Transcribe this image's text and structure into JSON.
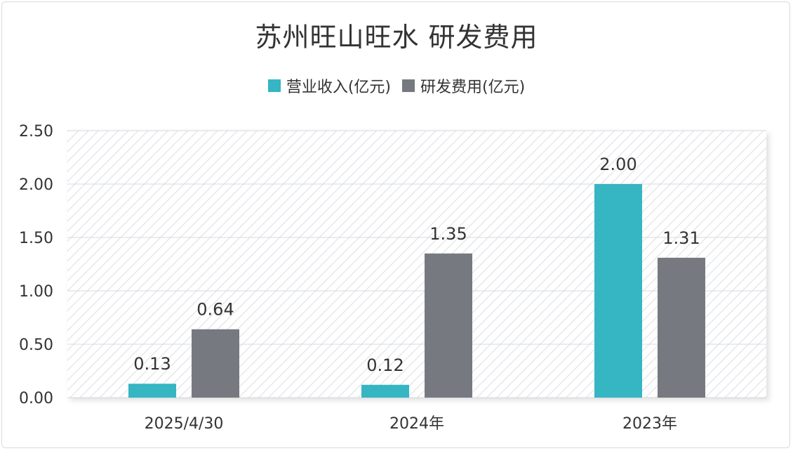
{
  "chart_data": {
    "type": "bar",
    "title": "苏州旺山旺水 研发费用",
    "categories": [
      "2025/4/30",
      "2024年",
      "2023年"
    ],
    "series": [
      {
        "name": "营业收入(亿元)",
        "values": [
          0.13,
          0.12,
          2.0
        ],
        "labels": [
          "0.13",
          "0.12",
          "2.00"
        ],
        "color": "#36b5c3"
      },
      {
        "name": "研发费用(亿元)",
        "values": [
          0.64,
          1.35,
          1.31
        ],
        "labels": [
          "0.64",
          "1.35",
          "1.31"
        ],
        "color": "#767a80"
      }
    ],
    "ylim": [
      0,
      2.5
    ],
    "yticks": [
      "0.00",
      "0.50",
      "1.00",
      "1.50",
      "2.00",
      "2.50"
    ],
    "legend": "top-center",
    "grid": true
  }
}
